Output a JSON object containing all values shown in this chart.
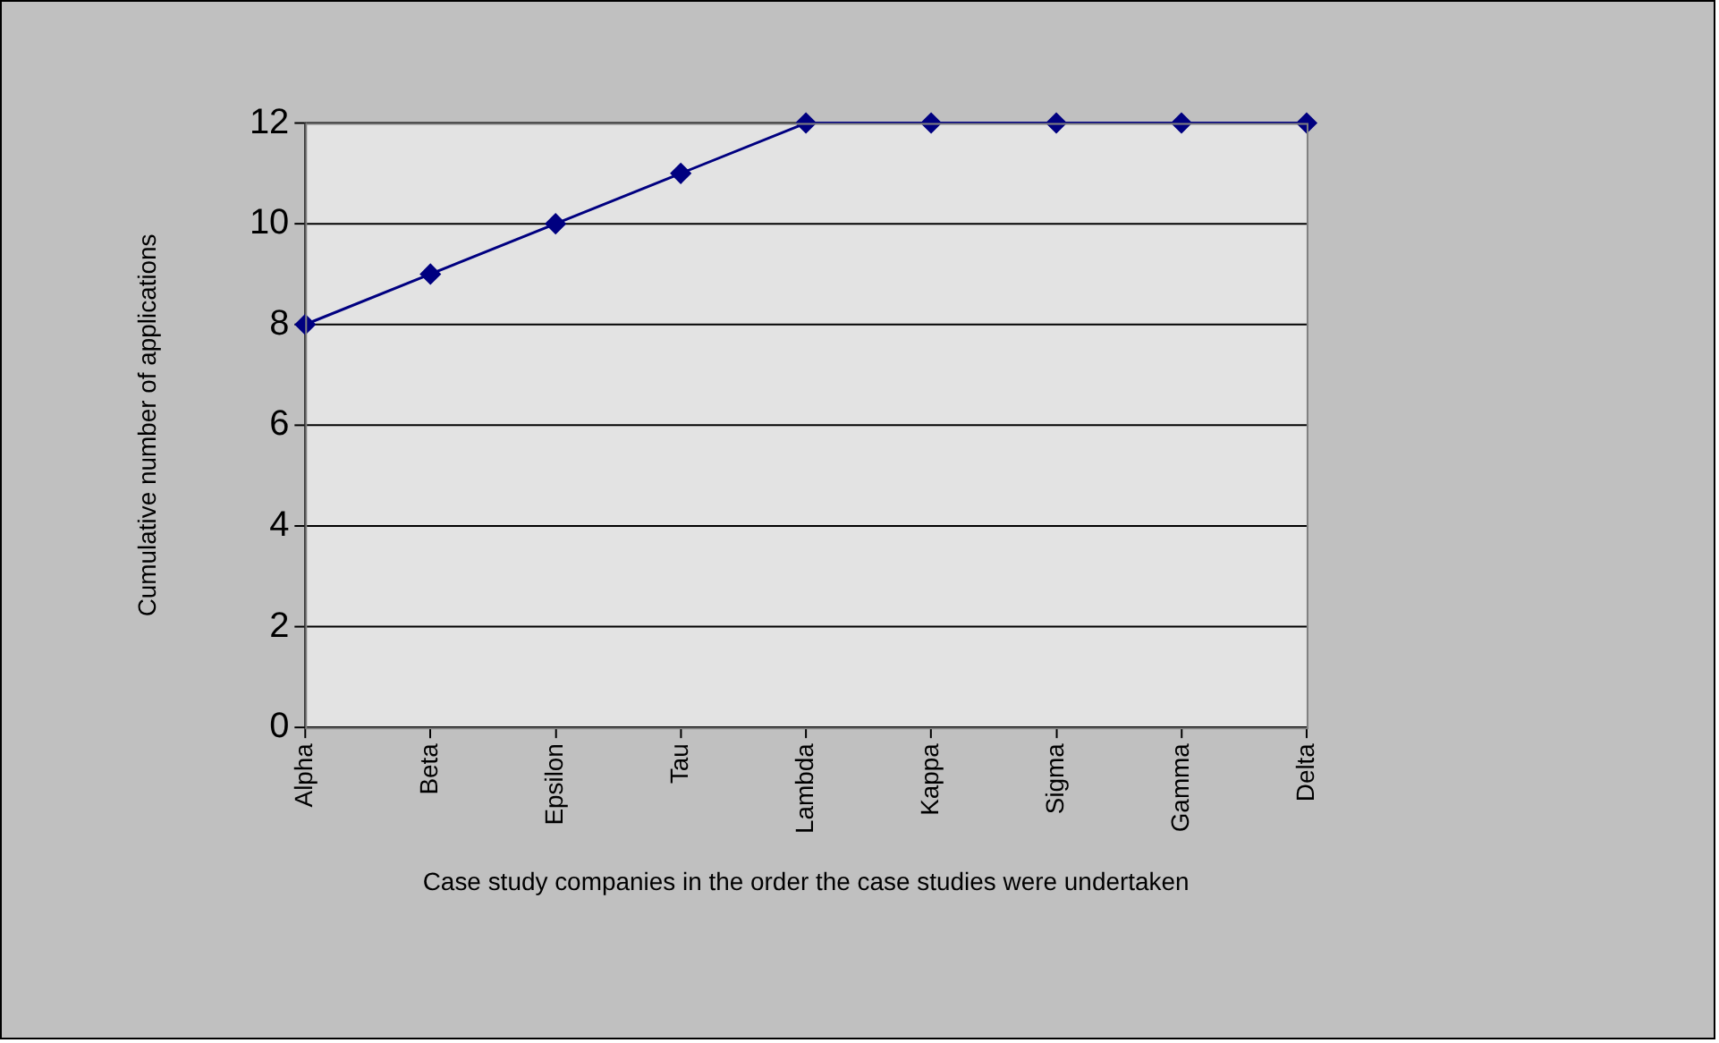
{
  "chart_data": {
    "type": "line",
    "xlabel": "Case study companies in the order the case studies were undertaken",
    "ylabel": "Cumulative number of applications",
    "categories": [
      "Alpha",
      "Beta",
      "Epsilon",
      "Tau",
      "Lambda",
      "Kappa",
      "Sigma",
      "Gamma",
      "Delta"
    ],
    "values": [
      8,
      9,
      10,
      11,
      12,
      12,
      12,
      12,
      12
    ],
    "color": "#000080",
    "marker": "diamond",
    "ylim": [
      0,
      12
    ],
    "yticks": [
      0,
      2,
      4,
      6,
      8,
      10,
      12
    ],
    "grid": "y"
  }
}
